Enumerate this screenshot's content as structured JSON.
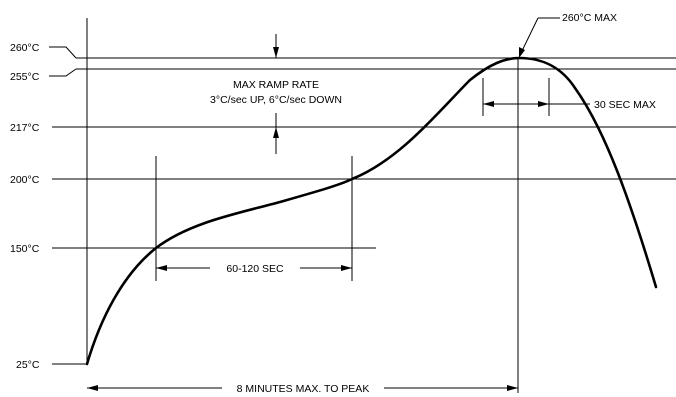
{
  "temperature_labels": {
    "t260": "260°C",
    "t255": "255°C",
    "t217": "217°C",
    "t200": "200°C",
    "t150": "150°C",
    "t25": "25°C"
  },
  "annotations": {
    "peak_max": "260°C MAX",
    "ramp_rate_title": "MAX RAMP RATE",
    "ramp_rate_detail": "3°C/sec UP, 6°C/sec DOWN",
    "time_above_peak": "30 SEC MAX",
    "soak_time": "60-120 SEC",
    "time_to_peak": "8 MINUTES MAX. TO PEAK"
  }
}
